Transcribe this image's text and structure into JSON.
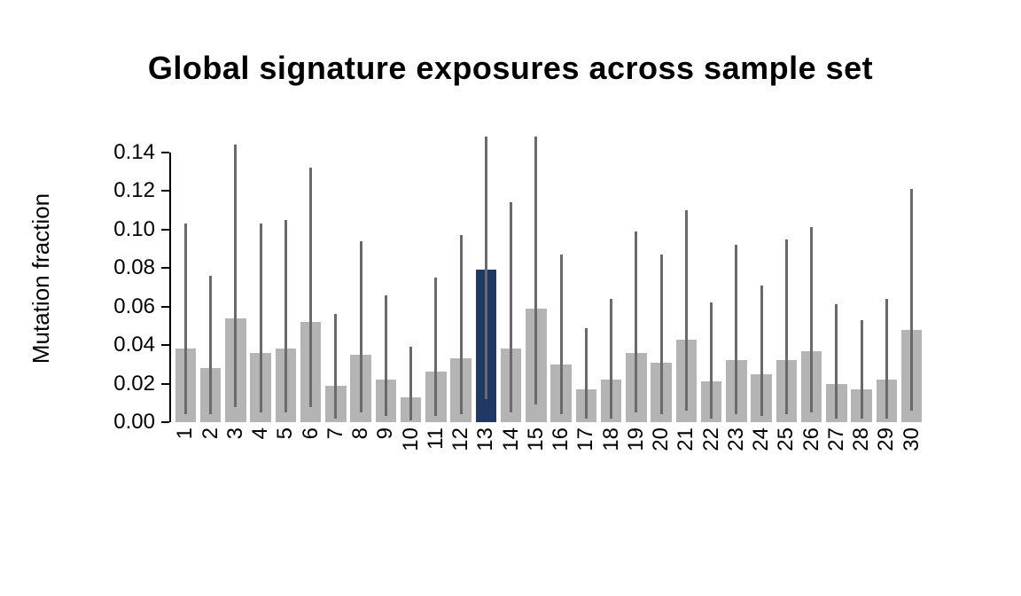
{
  "chart_data": {
    "type": "bar",
    "title": "Global signature exposures across sample set",
    "xlabel": "",
    "ylabel": "Mutation fraction",
    "categories": [
      "1",
      "2",
      "3",
      "4",
      "5",
      "6",
      "7",
      "8",
      "9",
      "10",
      "11",
      "12",
      "13",
      "14",
      "15",
      "16",
      "17",
      "18",
      "19",
      "20",
      "21",
      "22",
      "23",
      "24",
      "25",
      "26",
      "27",
      "28",
      "29",
      "30"
    ],
    "series": [
      {
        "name": "exposure",
        "values": [
          0.038,
          0.028,
          0.054,
          0.036,
          0.038,
          0.052,
          0.019,
          0.035,
          0.022,
          0.013,
          0.026,
          0.033,
          0.079,
          0.038,
          0.059,
          0.03,
          0.017,
          0.022,
          0.036,
          0.031,
          0.043,
          0.021,
          0.032,
          0.025,
          0.032,
          0.037,
          0.02,
          0.017,
          0.022,
          0.048
        ]
      },
      {
        "name": "whisker_high",
        "values": [
          0.103,
          0.076,
          0.144,
          0.103,
          0.105,
          0.132,
          0.056,
          0.094,
          0.066,
          0.039,
          0.075,
          0.097,
          0.148,
          0.114,
          0.148,
          0.087,
          0.049,
          0.064,
          0.099,
          0.087,
          0.11,
          0.062,
          0.092,
          0.071,
          0.095,
          0.101,
          0.061,
          0.053,
          0.064,
          0.121
        ]
      },
      {
        "name": "whisker_low",
        "values": [
          0.004,
          0.004,
          0.008,
          0.005,
          0.005,
          0.008,
          0.002,
          0.005,
          0.003,
          0.001,
          0.003,
          0.004,
          0.012,
          0.005,
          0.009,
          0.004,
          0.002,
          0.002,
          0.005,
          0.004,
          0.006,
          0.002,
          0.004,
          0.003,
          0.004,
          0.005,
          0.002,
          0.002,
          0.002,
          0.006
        ]
      }
    ],
    "yticks": [
      0.0,
      0.02,
      0.04,
      0.06,
      0.08,
      0.1,
      0.12,
      0.14
    ],
    "ylim": [
      0,
      0.15
    ],
    "highlighted_category": "13",
    "colors": {
      "bar": "#b4b4b4",
      "highlight": "#1f3864",
      "whisker": "#6a6a6a",
      "axis": "#000000"
    },
    "grid": false,
    "legend": null
  }
}
